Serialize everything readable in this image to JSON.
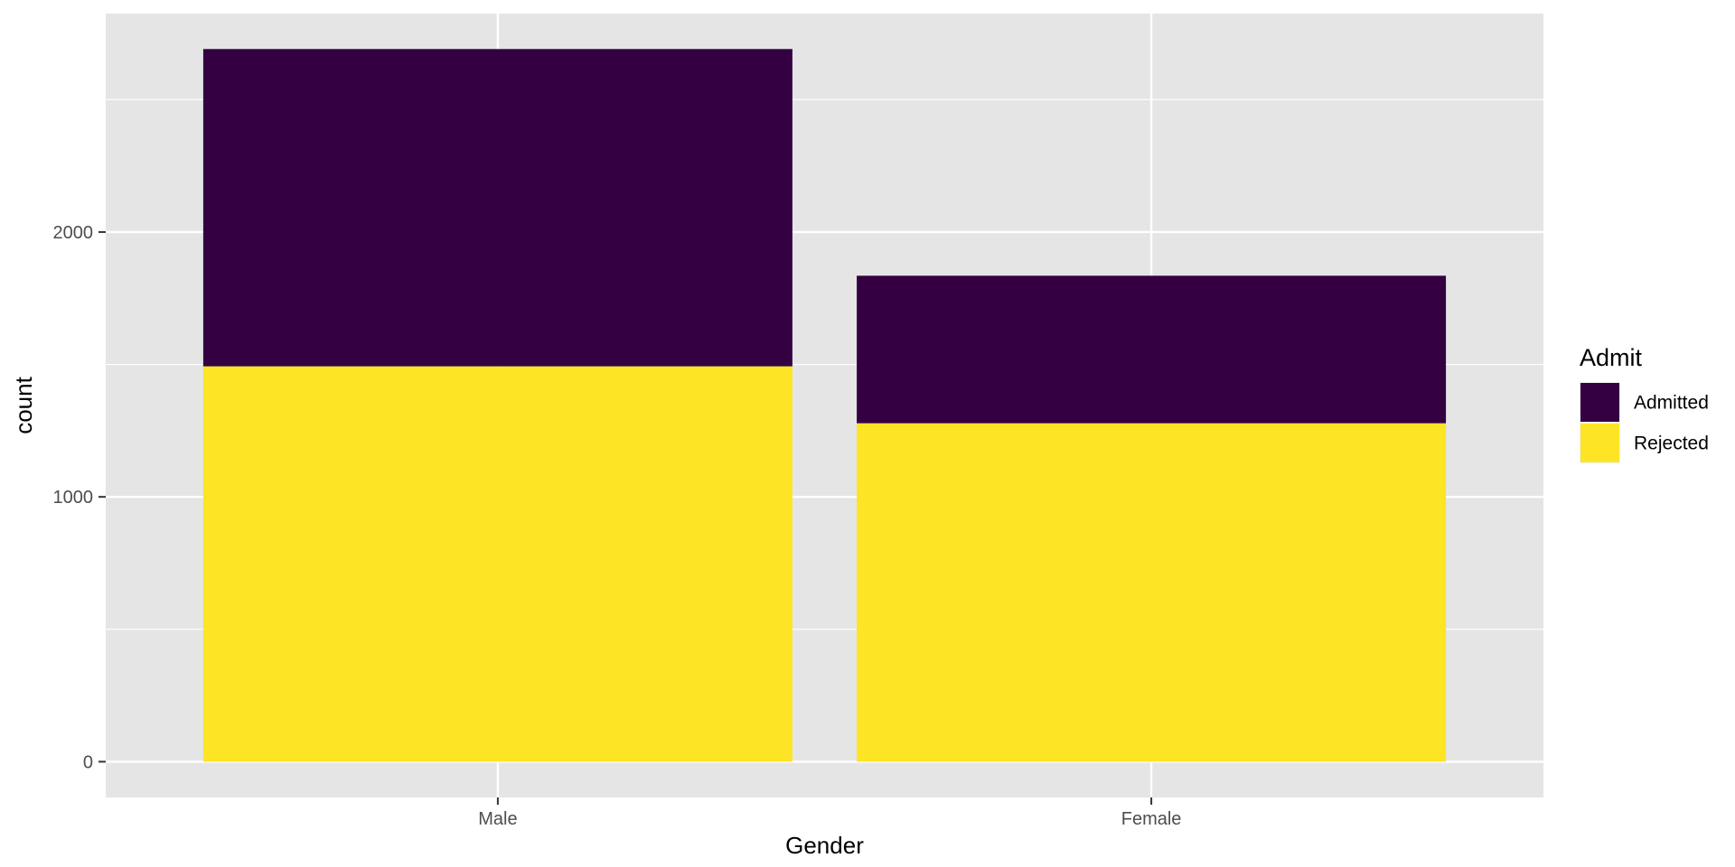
{
  "chart_data": {
    "type": "bar",
    "stacked": true,
    "categories": [
      "Male",
      "Female"
    ],
    "series": [
      {
        "name": "Admitted",
        "color": "#340042",
        "values": [
          1198,
          557
        ]
      },
      {
        "name": "Rejected",
        "color": "#FDE425",
        "values": [
          1493,
          1278
        ]
      }
    ],
    "xlabel": "Gender",
    "ylabel": "count",
    "ylim": [
      -135,
      2825
    ],
    "yticks": [
      0,
      1000,
      2000
    ],
    "ytick_labels": [
      "0",
      "1000",
      "2000"
    ],
    "grid": true,
    "legend": {
      "title": "Admit",
      "position": "right",
      "items": [
        "Admitted",
        "Rejected"
      ]
    },
    "panel_background": "#E5E5E5",
    "grid_color": "#FFFFFF"
  }
}
